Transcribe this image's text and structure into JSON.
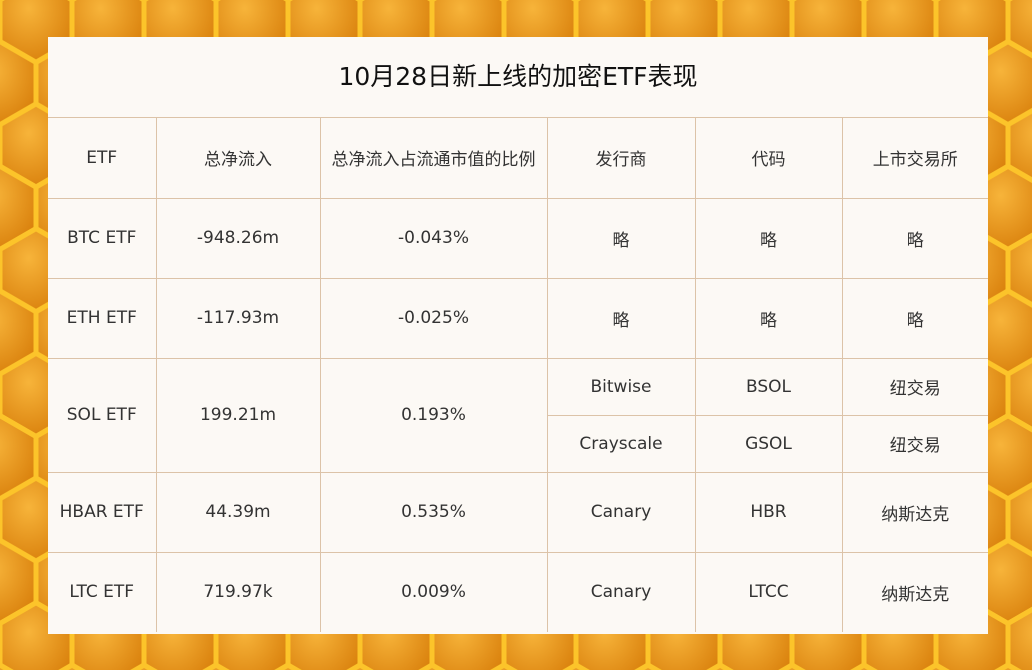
{
  "title": "10月28日新上线的加密ETF表现",
  "colors": {
    "background": "#f2a516",
    "panel": "#fcf9f5",
    "grid": "#dcc3a8"
  },
  "headers": [
    "ETF",
    "总净流入",
    "总净流入占流通市值的比例",
    "发行商",
    "代码",
    "上市交易所"
  ],
  "rows": [
    {
      "etf": "BTC ETF",
      "inflow": "-948.26m",
      "ratio": "-0.043%",
      "issuers": [
        {
          "issuer": "略",
          "code": "略",
          "exchange": "略"
        }
      ]
    },
    {
      "etf": "ETH ETF",
      "inflow": "-117.93m",
      "ratio": "-0.025%",
      "issuers": [
        {
          "issuer": "略",
          "code": "略",
          "exchange": "略"
        }
      ]
    },
    {
      "etf": "SOL ETF",
      "inflow": "199.21m",
      "ratio": "0.193%",
      "issuers": [
        {
          "issuer": "Bitwise",
          "code": "BSOL",
          "exchange": "纽交易"
        },
        {
          "issuer": "Crayscale",
          "code": "GSOL",
          "exchange": "纽交易"
        }
      ]
    },
    {
      "etf": "HBAR ETF",
      "inflow": "44.39m",
      "ratio": "0.535%",
      "issuers": [
        {
          "issuer": "Canary",
          "code": "HBR",
          "exchange": "纳斯达克"
        }
      ]
    },
    {
      "etf": "LTC ETF",
      "inflow": "719.97k",
      "ratio": "0.009%",
      "issuers": [
        {
          "issuer": "Canary",
          "code": "LTCC",
          "exchange": "纳斯达克"
        }
      ]
    }
  ]
}
